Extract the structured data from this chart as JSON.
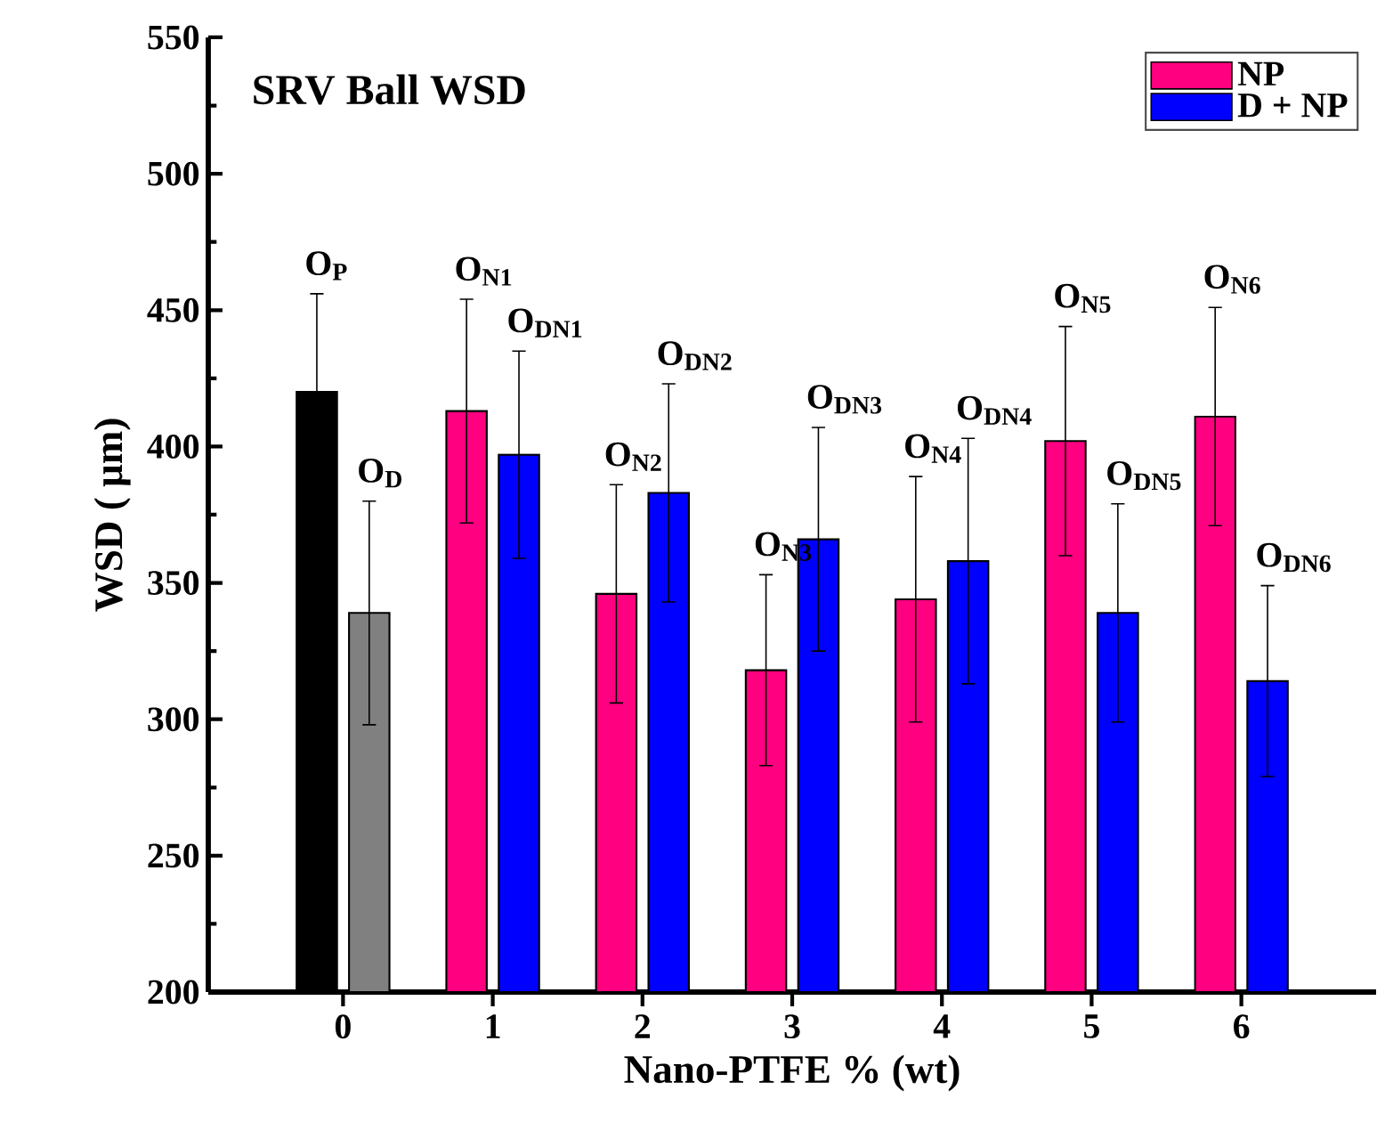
{
  "chart_data": {
    "type": "bar",
    "title": "SRV Ball WSD",
    "xlabel": "Nano-PTFE % (wt)",
    "ylabel": "WSD ( μm)",
    "categories": [
      "0",
      "1",
      "2",
      "3",
      "4",
      "5",
      "6"
    ],
    "series": [
      {
        "name": "NP",
        "color": "#ff0080",
        "colors": [
          "#000000",
          "#ff0080",
          "#ff0080",
          "#ff0080",
          "#ff0080",
          "#ff0080",
          "#ff0080"
        ],
        "values": [
          420,
          413,
          346,
          318,
          344,
          402,
          411
        ],
        "errors": [
          36,
          41,
          40,
          35,
          45,
          42,
          40
        ]
      },
      {
        "name": "D + NP",
        "color": "#0000ff",
        "colors": [
          "#808080",
          "#0000ff",
          "#0000ff",
          "#0000ff",
          "#0000ff",
          "#0000ff",
          "#0000ff"
        ],
        "values": [
          339,
          397,
          383,
          366,
          358,
          339,
          314
        ],
        "errors": [
          41,
          38,
          40,
          41,
          45,
          40,
          35
        ]
      }
    ],
    "ylim": [
      200,
      550
    ],
    "yticks": [
      200,
      250,
      300,
      350,
      400,
      450,
      500,
      550
    ],
    "legend": "top right",
    "annotations": [
      "O$_{P}$",
      "O$_{D}$",
      "O$_{N1}$",
      "O$_{DN1}$",
      "O$_{N2}$",
      "O$_{DN2}$",
      "O$_{N3}$",
      "O$_{DN3}$",
      "O$_{N4}$",
      "O$_{DN4}$",
      "O$_{N5}$",
      "O$_{DN5}$",
      "O$_{N6}$",
      "O$_{DN6}$"
    ]
  }
}
